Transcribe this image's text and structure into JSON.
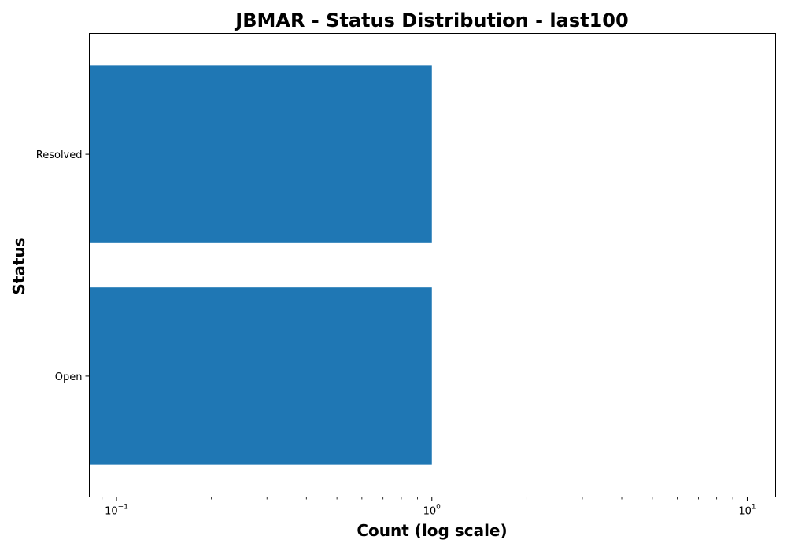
{
  "chart_data": {
    "type": "bar",
    "orientation": "horizontal",
    "title": "JBMAR - Status Distribution - last100",
    "xlabel": "Count (log scale)",
    "ylabel": "Status",
    "x_scale": "log",
    "xlim": [
      0.082,
      12.3
    ],
    "x_ticks": [
      {
        "value": 0.1,
        "base": "10",
        "exp": "−1"
      },
      {
        "value": 1,
        "base": "10",
        "exp": "0"
      },
      {
        "value": 10,
        "base": "10",
        "exp": "1"
      }
    ],
    "categories": [
      "Open",
      "Resolved"
    ],
    "values": [
      1,
      1
    ],
    "bar_color": "#1f77b4",
    "grid": false,
    "legend": "none"
  }
}
